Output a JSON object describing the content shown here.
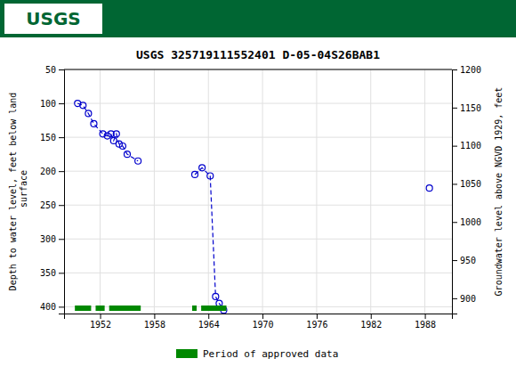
{
  "chart_data": {
    "type": "line",
    "title": "USGS 325719111552401 D-05-04S26BAB1",
    "annotations": [
      {
        "text": "USGS",
        "color": "#006633"
      }
    ],
    "ylabel": "Depth to water level, feet below land\n surface",
    "y2label": "Groundwater level above NGVD 1929, feet",
    "xlim": [
      1948.0,
      1991.0
    ],
    "xticks": [
      1952,
      1958,
      1964,
      1970,
      1976,
      1982,
      1988
    ],
    "ylim": [
      410,
      50
    ],
    "yticks": [
      50,
      100,
      150,
      200,
      250,
      300,
      350,
      400
    ],
    "y2lim": [
      880,
      1200
    ],
    "y2ticks": [
      1200,
      1150,
      1100,
      1050,
      1000,
      950,
      900
    ],
    "grid": true,
    "series": [
      {
        "type": "line",
        "color": "#0000CC",
        "marker": "circle",
        "line_style": "dashed",
        "x": [
          1949.5,
          1950.1,
          1950.7,
          1951.3,
          1952.3,
          1952.8,
          1953.2,
          1953.5,
          1953.8,
          1954.1,
          1954.5,
          1955.0,
          1956.2,
          null,
          1962.5,
          1963.3,
          1964.2,
          1964.8,
          1965.2,
          1965.7,
          null,
          1988.5
        ],
        "values": [
          100,
          103,
          115,
          130,
          145,
          148,
          145,
          155,
          145,
          160,
          163,
          175,
          185,
          null,
          205,
          195,
          207,
          385,
          395,
          405,
          null,
          225
        ]
      },
      {
        "type": "bar",
        "name": "Period of approved data",
        "color": "#008800",
        "x_start": [
          1949.2,
          1951.5,
          1953.0,
          1962.2,
          1963.2
        ],
        "x_end": [
          1951.0,
          1952.5,
          1956.5,
          1962.7,
          1966.0
        ]
      }
    ]
  }
}
